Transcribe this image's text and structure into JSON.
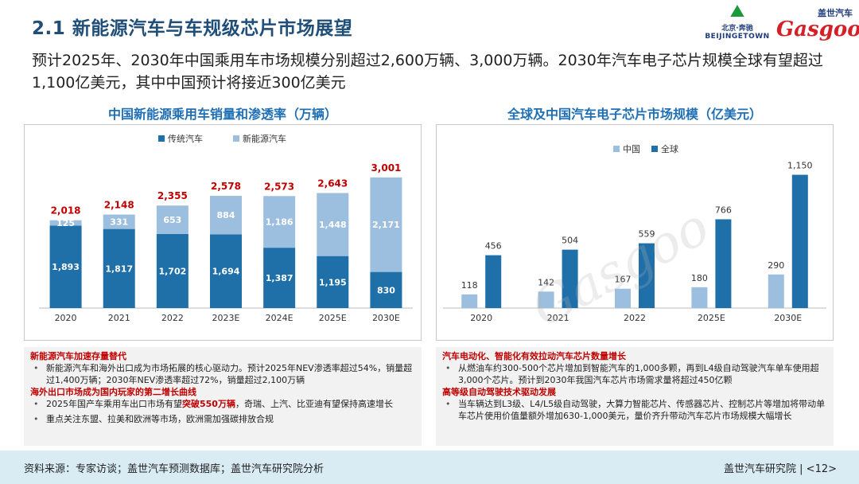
{
  "header": {
    "title": "2.1 新能源汽车与车规级芯片市场展望",
    "subtitle": "预计2025年、2030年中国乘用车市场规模分别超过2,600万辆、3,000万辆。2030年汽车电子芯片规模全球有望超过1,100亿美元，其中中国预计将接近300亿美元",
    "logo_beijing_cn": "北京·奔驰",
    "logo_beijing_en": "BEIJINGETOWN",
    "logo_gasgoo_cn": "盖世汽车",
    "logo_gasgoo_en": "Gasgoo"
  },
  "colors": {
    "dark_blue": "#1f6fa8",
    "light_blue": "#9dbfdf",
    "total_red": "#c00000",
    "title_blue": "#1f6fb5"
  },
  "chart_data": [
    {
      "type": "bar",
      "stacked": true,
      "title": "中国新能源乘用车销量和渗透率（万辆）",
      "categories": [
        "2020",
        "2021",
        "2022",
        "2023E",
        "2024E",
        "2025E",
        "2030E"
      ],
      "series": [
        {
          "name": "传统汽车",
          "values": [
            1893,
            1817,
            1702,
            1694,
            1387,
            1195,
            830
          ]
        },
        {
          "name": "新能源汽车",
          "values": [
            125,
            331,
            653,
            884,
            1186,
            1448,
            2171
          ]
        }
      ],
      "totals": [
        2018,
        2148,
        2355,
        2578,
        2573,
        2643,
        3001
      ],
      "value_labels": {
        "traditional": [
          "1,893",
          "1,817",
          "1,702",
          "1,694",
          "1,387",
          "1,195",
          "830"
        ],
        "nev": [
          "125",
          "331",
          "653",
          "884",
          "1,186",
          "1,448",
          "2,171"
        ],
        "totals": [
          "2,018",
          "2,148",
          "2,355",
          "2,578",
          "2,573",
          "2,643",
          "3,001"
        ]
      },
      "legend": [
        "传统汽车",
        "新能源汽车"
      ],
      "legend_position": "top-center",
      "ylim": [
        0,
        3200
      ]
    },
    {
      "type": "bar",
      "stacked": false,
      "title": "全球及中国汽车电子芯片市场规模（亿美元）",
      "categories": [
        "2020",
        "2021",
        "2022",
        "2025E",
        "2030E"
      ],
      "series": [
        {
          "name": "中国",
          "values": [
            118,
            142,
            167,
            180,
            290
          ]
        },
        {
          "name": "全球",
          "values": [
            456,
            504,
            559,
            766,
            1150
          ]
        }
      ],
      "value_labels": {
        "china": [
          "118",
          "142",
          "167",
          "180",
          "290"
        ],
        "global": [
          "456",
          "504",
          "559",
          "766",
          "1,150"
        ]
      },
      "legend": [
        "中国",
        "全球"
      ],
      "legend_position": "top-left",
      "ylim": [
        0,
        1250
      ]
    }
  ],
  "notes_left": {
    "h1": "新能源汽车加速存量替代",
    "items1": [
      "新能源汽车和海外出口成为市场拓展的核心驱动力。预计2025年NEV渗透率超过54%，销量超过1,400万辆；2030年NEV渗透率超过72%，销量超过2,100万辆"
    ],
    "h2": "海外出口市场成为国内玩家的第二增长曲线",
    "item2_pre": "2025年国产车乘用车出口市场有望",
    "item2_em": "突破550万辆",
    "item2_post": "，奇瑞、上汽、比亚迪有望保持高速增长",
    "item3": "重点关注东盟、拉美和欧洲等市场，欧洲需加强碳排放合规"
  },
  "notes_right": {
    "h1": "汽车电动化、智能化有效拉动汽车芯片数量增长",
    "item1": "从燃油车约300-500个芯片增加到智能汽车的1,000多颗，再到L4级自动驾驶汽车单车使用超3,000个芯片。预计到2030年我国汽车芯片市场需求量将超过450亿颗",
    "h2": "高等级自动驾驶技术驱动发展",
    "item2": "当车辆达到L3级、L4/L5级自动驾驶，大算力智能芯片、传感器芯片、控制芯片等增加将带动单车芯片使用价值量额外增加630-1,000美元，量价齐升带动汽车芯片市场规模大幅增长"
  },
  "footer": {
    "source": "资料来源：专家访谈；盖世汽车预测数据库；盖世汽车研究院分析",
    "org": "盖世汽车研究院",
    "page": "<12>"
  }
}
